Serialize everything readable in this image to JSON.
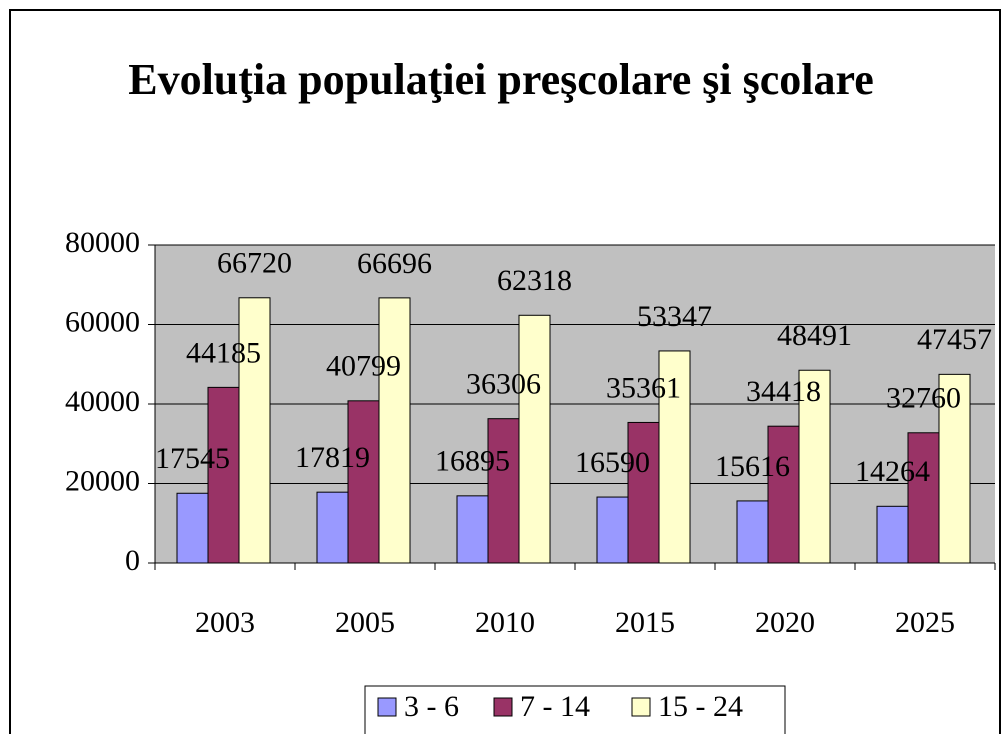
{
  "chart_data": {
    "type": "bar",
    "title": "Evoluţia populaţiei preşcolare şi şcolare",
    "categories": [
      "2003",
      "2005",
      "2010",
      "2015",
      "2020",
      "2025"
    ],
    "series": [
      {
        "name": "3 - 6",
        "color": "#9999ff",
        "values": [
          17545,
          17819,
          16895,
          16590,
          15616,
          14264
        ]
      },
      {
        "name": "7 - 14",
        "color": "#993366",
        "values": [
          44185,
          40799,
          36306,
          35361,
          34418,
          32760
        ]
      },
      {
        "name": "15 - 24",
        "color": "#ffffcc",
        "values": [
          66720,
          66696,
          62318,
          53347,
          48491,
          47457
        ]
      }
    ],
    "ylim": [
      0,
      80000
    ],
    "yticks": [
      0,
      20000,
      40000,
      60000,
      80000
    ],
    "grid": true,
    "legend": "bottom"
  }
}
